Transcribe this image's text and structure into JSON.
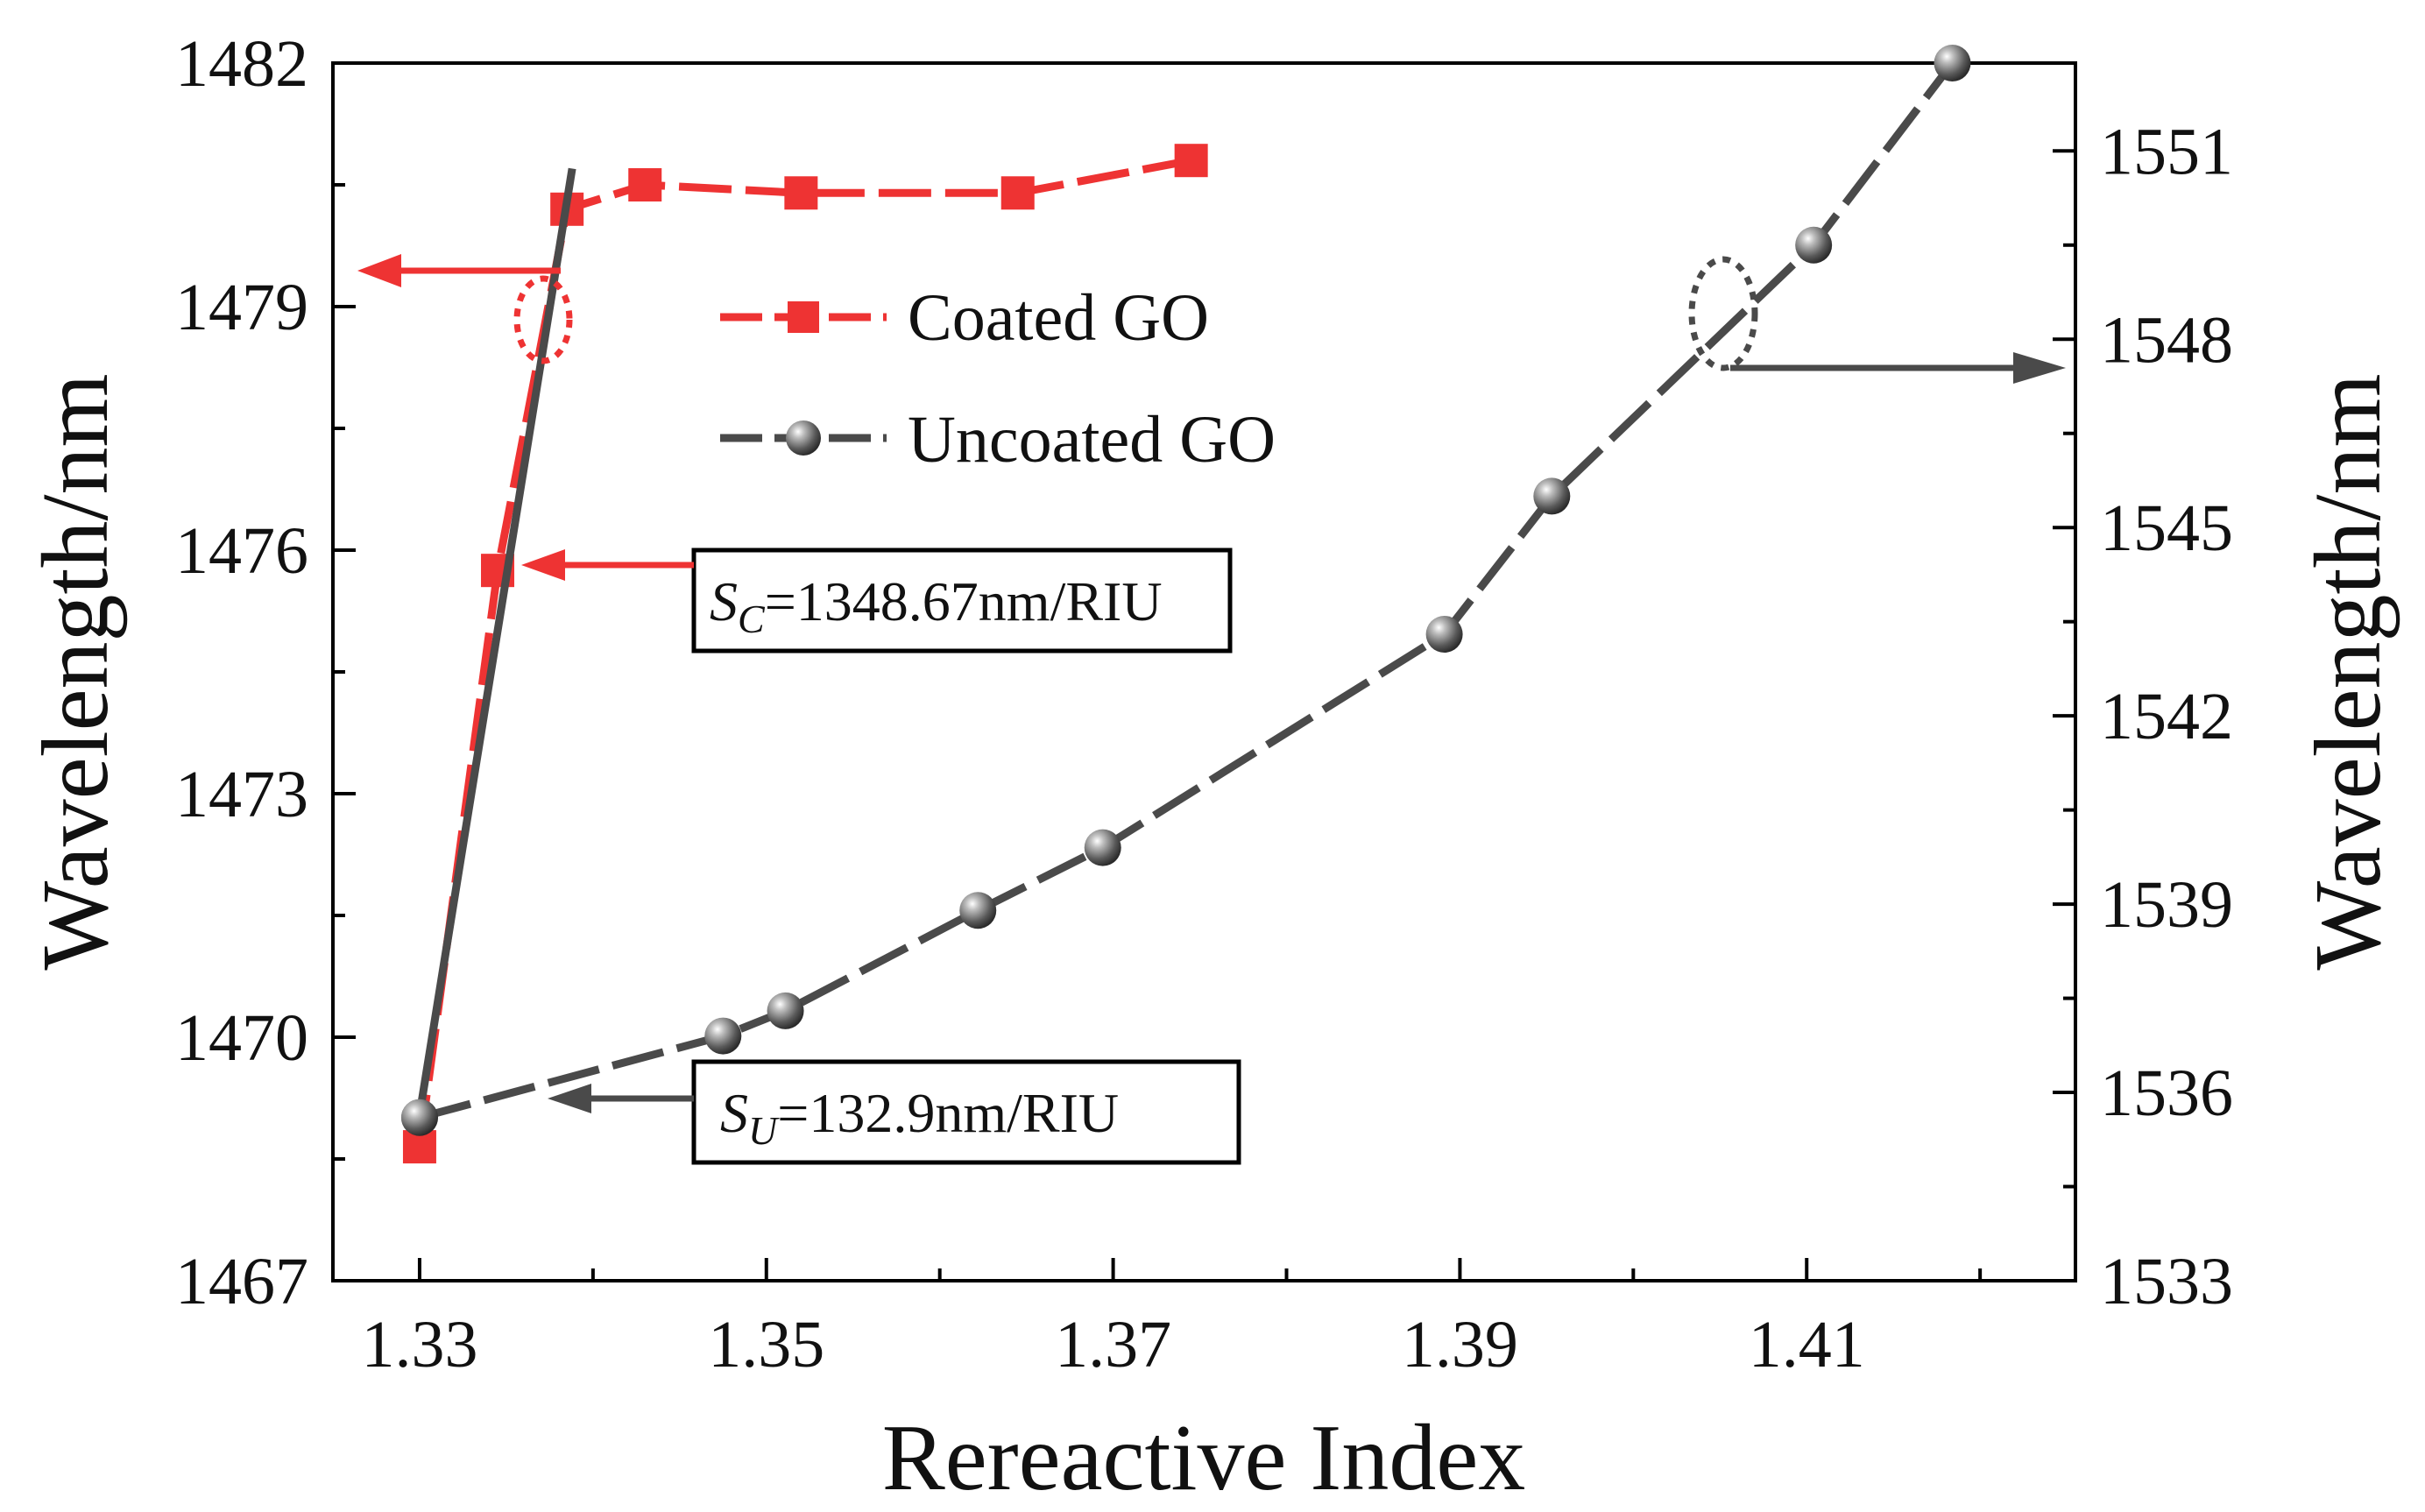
{
  "chart_data": {
    "type": "line",
    "title": "",
    "xlabel": "Rereactive Index",
    "ylabel_left": "Wavelength/nm",
    "ylabel_right": "Wavelength/nm",
    "xlim": [
      1.325,
      1.4255
    ],
    "ylim_left": [
      1467,
      1482
    ],
    "ylim_right": [
      1533,
      1552.4
    ],
    "x_ticks": [
      "1.33",
      "1.35",
      "1.37",
      "1.39",
      "1.41"
    ],
    "y_left_ticks": [
      "1467",
      "1470",
      "1473",
      "1476",
      "1479",
      "1482"
    ],
    "y_right_ticks": [
      "1533",
      "1536",
      "1539",
      "1542",
      "1545",
      "1548",
      "1551"
    ],
    "colors": {
      "coated": "#ee3333",
      "uncoated": "#4a4a4a",
      "fit_line": "#4a4a4a"
    },
    "series": [
      {
        "name": "Coated GO",
        "axis": "left",
        "marker": "square",
        "x": [
          1.33,
          1.3345,
          1.3385,
          1.343,
          1.352,
          1.3645,
          1.3745
        ],
        "y": [
          1468.65,
          1475.75,
          1480.2,
          1480.5,
          1480.4,
          1480.4,
          1480.8
        ]
      },
      {
        "name": "Uncoated GO",
        "axis": "right",
        "marker": "sphere",
        "x": [
          1.33,
          1.3475,
          1.3511,
          1.3622,
          1.3694,
          1.3891,
          1.3953,
          1.4104,
          1.4184
        ],
        "y": [
          1535.6,
          1536.9,
          1537.3,
          1538.9,
          1539.9,
          1543.3,
          1545.5,
          1549.5,
          1552.4
        ]
      }
    ],
    "fit_line": {
      "x": [
        1.33,
        1.3388
      ],
      "y_left": [
        1469.05,
        1480.7
      ]
    },
    "annotations": {
      "coated_sensitivity_symbol": "S",
      "coated_sensitivity_subscript": "C",
      "coated_sensitivity_value": "=1348.67nm/RIU",
      "uncoated_sensitivity_symbol": "S",
      "uncoated_sensitivity_subscript": "U",
      "uncoated_sensitivity_value": "=132.9nm/RIU"
    },
    "legend": {
      "position": "top-center",
      "entries": [
        "Coated GO",
        "Uncoated GO"
      ]
    }
  }
}
